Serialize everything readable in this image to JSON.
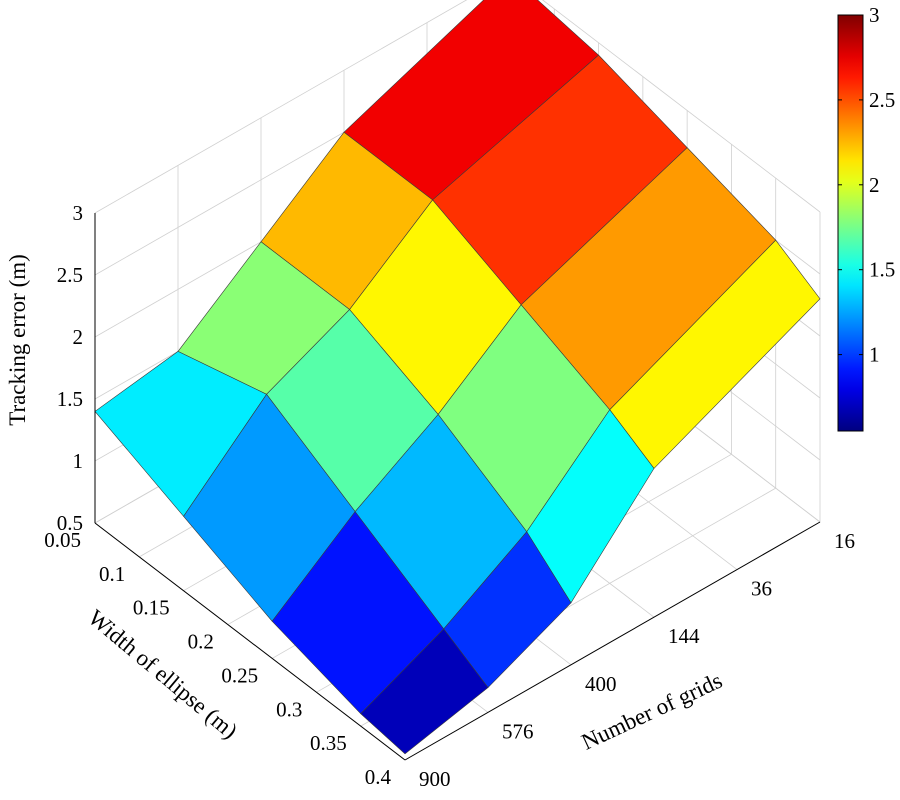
{
  "chart_data": {
    "type": "surface3d",
    "xlabel": "Number of grids",
    "ylabel": "Width of ellipse (m)",
    "zlabel": "Tracking error (m)",
    "x_ticks": [
      "16",
      "36",
      "144",
      "400",
      "576",
      "900"
    ],
    "y_ticks": [
      "0.05",
      "0.1",
      "0.15",
      "0.2",
      "0.25",
      "0.3",
      "0.35",
      "0.4"
    ],
    "z_ticks": [
      "0.5",
      "1",
      "1.5",
      "2",
      "2.5",
      "3"
    ],
    "zlim": [
      0.5,
      3
    ],
    "x_grid_values": [
      16,
      144,
      400,
      576,
      900
    ],
    "y_grid_values": [
      0.05,
      0.15,
      0.25,
      0.35,
      0.4
    ],
    "z_values": [
      [
        3.0,
        2.9,
        2.7,
        2.5,
        2.3
      ],
      [
        2.5,
        2.5,
        2.2,
        1.9,
        1.7
      ],
      [
        2.0,
        2.0,
        1.7,
        1.3,
        1.0
      ],
      [
        1.5,
        1.7,
        1.3,
        0.9,
        0.7
      ],
      [
        1.4,
        1.1,
        0.8,
        0.6,
        0.55
      ]
    ],
    "colorbar": {
      "ticks": [
        "1",
        "1.5",
        "2",
        "2.5",
        "3"
      ],
      "range": [
        0.55,
        3.0
      ],
      "colormap": "jet"
    },
    "grid": true
  }
}
